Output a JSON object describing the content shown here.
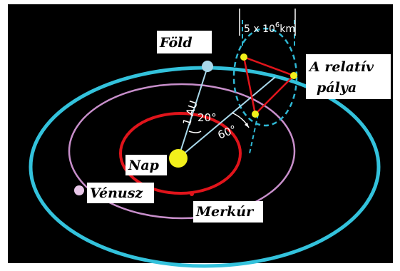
{
  "labels": {
    "earth": "Föld",
    "relative_orbit_line1": "A relatív",
    "relative_orbit_line2": "pálya",
    "sun": "Nap",
    "venus": "Vénusz",
    "mercury": "Merkúr"
  },
  "annotations": {
    "distance": "1 AU",
    "angle_small": "20°",
    "angle_large": "60°",
    "scale_prefix": "5 x 10",
    "scale_exponent": "6",
    "scale_unit": "km"
  },
  "colors": {
    "background": "#000000",
    "frame": "#ffffff",
    "earth_orbit": "#33c2dc",
    "venus_orbit": "#c88fcb",
    "mercury_orbit": "#e0141b",
    "sun": "#f2ef1b",
    "earth": "#a9d8ea",
    "venus": "#e8c6e8",
    "relative_orbit": "#2fb8d4",
    "triangle": "#e0141b",
    "planet_marker": "#f2ef1b"
  }
}
